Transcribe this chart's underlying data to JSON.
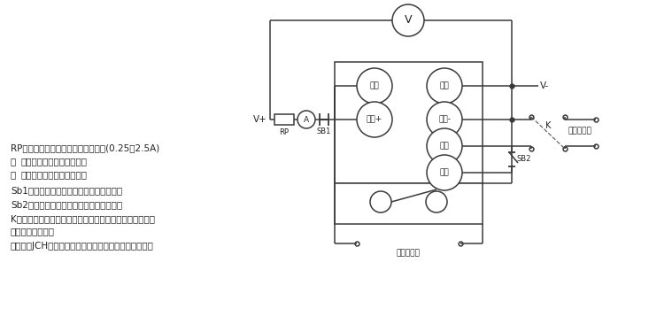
{
  "bg_color": "#ffffff",
  "line_color": "#3a3a3a",
  "text_color": "#222222",
  "fig_width": 7.33,
  "fig_height": 3.75,
  "notes": [
    "RP为大功率滑成变阻器用来调节电流(0.25～2.5A)",
    "为安培表用来监视合闸电流",
    "为电压表用来监视额定电压",
    "Sb1为常闭按钮，用来复位合闸保持电流。",
    "Sb2为常开按钮，用来测试放电闭锁功能。",
    "K为刀开关或同一继电器的两付同时动作的常开触点，用来",
    "控制延时的启动。",
    "另有一付JCH常开触点接秒表停止，用来停止秒表计时。"
  ],
  "note_prefix": [
    "",
    "Ⓐ",
    "Ⓥ",
    "",
    "",
    "",
    "",
    ""
  ]
}
